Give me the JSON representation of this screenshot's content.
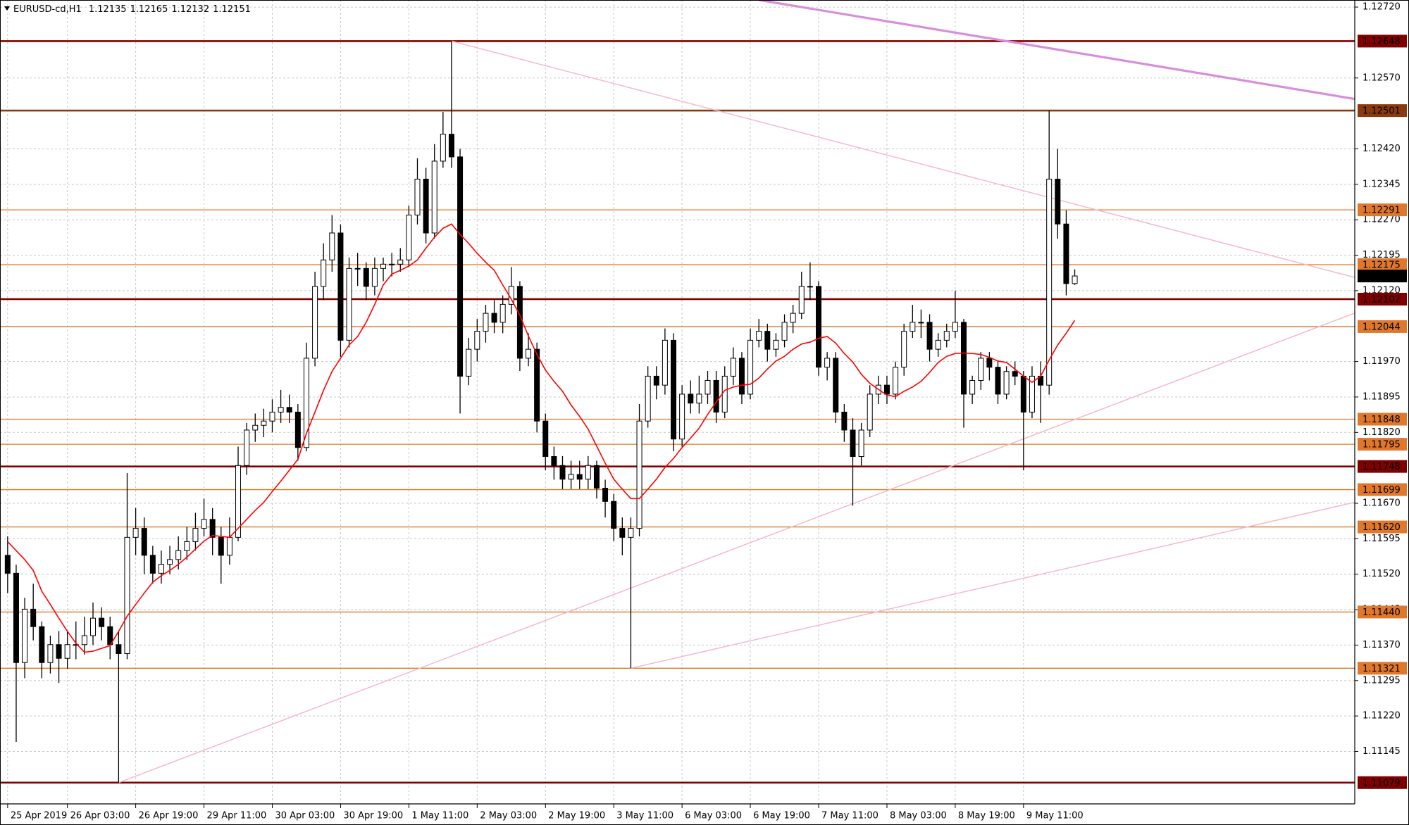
{
  "chart_data": {
    "type": "candlestick",
    "title": "EURUSD-cd,H1",
    "colors": {
      "up": "#ffffff",
      "down": "#000000",
      "outline": "#000000"
    },
    "grid": true,
    "xlim": [
      -0.895,
      157.8
    ],
    "ylim": [
      1.11034,
      1.12735
    ],
    "xticks": [
      {
        "value": 0,
        "label": "25 Apr 2019"
      },
      {
        "value": 7,
        "label": "26 Apr 03:00"
      },
      {
        "value": 15,
        "label": "26 Apr 19:00"
      },
      {
        "value": 23,
        "label": "29 Apr 11:00"
      },
      {
        "value": 31,
        "label": "30 Apr 03:00"
      },
      {
        "value": 39,
        "label": "30 Apr 19:00"
      },
      {
        "value": 47,
        "label": "1 May 11:00"
      },
      {
        "value": 55,
        "label": "2 May 03:00"
      },
      {
        "value": 63,
        "label": "2 May 19:00"
      },
      {
        "value": 71,
        "label": "3 May 11:00"
      },
      {
        "value": 79,
        "label": "6 May 03:00"
      },
      {
        "value": 87,
        "label": "6 May 19:00"
      },
      {
        "value": 95,
        "label": "7 May 11:00"
      },
      {
        "value": 103,
        "label": "8 May 03:00"
      },
      {
        "value": 111,
        "label": "8 May 19:00"
      },
      {
        "value": 119,
        "label": "9 May 11:00"
      }
    ],
    "yticks": [
      {
        "value": 1.1272,
        "label": "1.12720"
      },
      {
        "value": 1.1257,
        "label": "1.12570"
      },
      {
        "value": 1.1242,
        "label": "1.12420"
      },
      1.12345,
      {
        "value": 1.1227,
        "label": "1.12270"
      },
      1.12195,
      {
        "value": 1.1212,
        "label": "1.12120"
      },
      {
        "value": 1.1197,
        "label": "1.11970"
      },
      1.11895,
      {
        "value": 1.1182,
        "label": "1.11820"
      },
      {
        "value": 1.1167,
        "label": "1.11670"
      },
      1.11595,
      {
        "value": 1.1152,
        "label": "1.11520"
      },
      1.11445,
      {
        "value": 1.1137,
        "label": "1.11370"
      },
      1.11295,
      {
        "value": 1.1122,
        "label": "1.11220"
      },
      1.11145
    ],
    "candles": [
      [
        1.1156,
        1.116,
        1.1148,
        1.11522
      ],
      [
        1.11522,
        1.1154,
        1.11165,
        1.11333
      ],
      [
        1.11333,
        1.1147,
        1.113,
        1.11446
      ],
      [
        1.11446,
        1.115,
        1.1138,
        1.11409
      ],
      [
        1.11409,
        1.1142,
        1.113,
        1.11333
      ],
      [
        1.11333,
        1.1139,
        1.1131,
        1.11371
      ],
      [
        1.11371,
        1.114,
        1.1129,
        1.11342
      ],
      [
        1.11342,
        1.114,
        1.1132,
        1.11371
      ],
      [
        1.11371,
        1.1142,
        1.1134,
        1.11371
      ],
      [
        1.11371,
        1.1143,
        1.1135,
        1.1139
      ],
      [
        1.1139,
        1.1146,
        1.1137,
        1.11427
      ],
      [
        1.11427,
        1.1145,
        1.1138,
        1.11409
      ],
      [
        1.11409,
        1.1143,
        1.1134,
        1.11371
      ],
      [
        1.11371,
        1.114,
        1.11079,
        1.11352
      ],
      [
        1.11352,
        1.11734,
        1.1134,
        1.11598
      ],
      [
        1.11598,
        1.1166,
        1.1156,
        1.11617
      ],
      [
        1.11617,
        1.1164,
        1.1152,
        1.1156
      ],
      [
        1.1156,
        1.1158,
        1.115,
        1.11522
      ],
      [
        1.11522,
        1.1157,
        1.115,
        1.11541
      ],
      [
        1.11541,
        1.1158,
        1.1152,
        1.11551
      ],
      [
        1.11551,
        1.116,
        1.1153,
        1.1157
      ],
      [
        1.1157,
        1.1162,
        1.1155,
        1.11589
      ],
      [
        1.11589,
        1.1165,
        1.1157,
        1.11617
      ],
      [
        1.11617,
        1.1168,
        1.116,
        1.11636
      ],
      [
        1.11636,
        1.1166,
        1.1156,
        1.11598
      ],
      [
        1.11598,
        1.1162,
        1.115,
        1.1156
      ],
      [
        1.1156,
        1.1164,
        1.1154,
        1.11598
      ],
      [
        1.11598,
        1.1179,
        1.1159,
        1.1175
      ],
      [
        1.1175,
        1.1184,
        1.1173,
        1.11825
      ],
      [
        1.11825,
        1.1186,
        1.118,
        1.11835
      ],
      [
        1.11835,
        1.1187,
        1.1181,
        1.11844
      ],
      [
        1.11844,
        1.1189,
        1.1182,
        1.11863
      ],
      [
        1.11863,
        1.1191,
        1.1184,
        1.11873
      ],
      [
        1.11873,
        1.119,
        1.1184,
        1.11863
      ],
      [
        1.11863,
        1.1188,
        1.1176,
        1.11788
      ],
      [
        1.11788,
        1.1201,
        1.1178,
        1.11977
      ],
      [
        1.11977,
        1.1216,
        1.1196,
        1.12129
      ],
      [
        1.12129,
        1.1222,
        1.121,
        1.12185
      ],
      [
        1.12185,
        1.1228,
        1.1216,
        1.12242
      ],
      [
        1.12242,
        1.1226,
        1.1198,
        1.12015
      ],
      [
        1.12015,
        1.1219,
        1.12,
        1.12167
      ],
      [
        1.12167,
        1.122,
        1.1213,
        1.12167
      ],
      [
        1.12167,
        1.1218,
        1.121,
        1.12129
      ],
      [
        1.12129,
        1.1219,
        1.1211,
        1.12167
      ],
      [
        1.12167,
        1.1219,
        1.1214,
        1.12176
      ],
      [
        1.12176,
        1.122,
        1.1215,
        1.12176
      ],
      [
        1.12176,
        1.1221,
        1.1216,
        1.12185
      ],
      [
        1.12185,
        1.123,
        1.1217,
        1.1228
      ],
      [
        1.1228,
        1.124,
        1.1226,
        1.12356
      ],
      [
        1.12356,
        1.1238,
        1.1222,
        1.12242
      ],
      [
        1.12242,
        1.1243,
        1.1223,
        1.12394
      ],
      [
        1.12394,
        1.12498,
        1.1238,
        1.12451
      ],
      [
        1.12451,
        1.12648,
        1.1238,
        1.12403
      ],
      [
        1.12403,
        1.1242,
        1.1186,
        1.11939
      ],
      [
        1.11939,
        1.1202,
        1.1192,
        1.11996
      ],
      [
        1.11996,
        1.1206,
        1.1197,
        1.12034
      ],
      [
        1.12034,
        1.1209,
        1.1201,
        1.12072
      ],
      [
        1.12072,
        1.121,
        1.1203,
        1.12053
      ],
      [
        1.12053,
        1.1211,
        1.1203,
        1.12091
      ],
      [
        1.12091,
        1.1217,
        1.1207,
        1.12129
      ],
      [
        1.12129,
        1.1214,
        1.1195,
        1.11977
      ],
      [
        1.11977,
        1.1203,
        1.1196,
        1.11996
      ],
      [
        1.11996,
        1.1201,
        1.1182,
        1.11844
      ],
      [
        1.11844,
        1.1186,
        1.1174,
        1.11769
      ],
      [
        1.11769,
        1.1179,
        1.1172,
        1.1175
      ],
      [
        1.1175,
        1.1177,
        1.117,
        1.11721
      ],
      [
        1.11721,
        1.1176,
        1.117,
        1.11731
      ],
      [
        1.11731,
        1.1176,
        1.117,
        1.11721
      ],
      [
        1.11721,
        1.1177,
        1.117,
        1.1175
      ],
      [
        1.1175,
        1.1176,
        1.1168,
        1.11702
      ],
      [
        1.11702,
        1.1172,
        1.1164,
        1.11674
      ],
      [
        1.11674,
        1.1169,
        1.1159,
        1.11617
      ],
      [
        1.11617,
        1.1164,
        1.1156,
        1.11598
      ],
      [
        1.11598,
        1.1164,
        1.11321,
        1.11617
      ],
      [
        1.11617,
        1.1188,
        1.116,
        1.11844
      ],
      [
        1.11844,
        1.1196,
        1.1183,
        1.11939
      ],
      [
        1.11939,
        1.1196,
        1.1189,
        1.1192
      ],
      [
        1.1192,
        1.1204,
        1.119,
        1.12015
      ],
      [
        1.12015,
        1.1203,
        1.1178,
        1.11806
      ],
      [
        1.11806,
        1.1192,
        1.1179,
        1.11901
      ],
      [
        1.11901,
        1.1193,
        1.1186,
        1.11882
      ],
      [
        1.11882,
        1.1194,
        1.1186,
        1.11901
      ],
      [
        1.11901,
        1.1195,
        1.1188,
        1.1193
      ],
      [
        1.1193,
        1.1195,
        1.1184,
        1.11863
      ],
      [
        1.11863,
        1.1196,
        1.1185,
        1.11939
      ],
      [
        1.11939,
        1.12,
        1.1192,
        1.11977
      ],
      [
        1.11977,
        1.1199,
        1.1188,
        1.11901
      ],
      [
        1.11901,
        1.1204,
        1.1189,
        1.12015
      ],
      [
        1.12015,
        1.1206,
        1.12,
        1.12034
      ],
      [
        1.12034,
        1.1205,
        1.1197,
        1.11996
      ],
      [
        1.11996,
        1.1203,
        1.1198,
        1.12015
      ],
      [
        1.12015,
        1.1207,
        1.12,
        1.12053
      ],
      [
        1.12053,
        1.1209,
        1.1203,
        1.12072
      ],
      [
        1.12072,
        1.1216,
        1.1206,
        1.12129
      ],
      [
        1.12129,
        1.1218,
        1.121,
        1.12129
      ],
      [
        1.12129,
        1.1214,
        1.1194,
        1.11958
      ],
      [
        1.11958,
        1.1199,
        1.1193,
        1.11977
      ],
      [
        1.11977,
        1.1199,
        1.1184,
        1.11863
      ],
      [
        1.11863,
        1.1188,
        1.118,
        1.11825
      ],
      [
        1.11825,
        1.1185,
        1.11665,
        1.11769
      ],
      [
        1.11769,
        1.1184,
        1.1175,
        1.11825
      ],
      [
        1.11825,
        1.1192,
        1.1181,
        1.11901
      ],
      [
        1.11901,
        1.1194,
        1.1188,
        1.1192
      ],
      [
        1.1192,
        1.1194,
        1.1188,
        1.11901
      ],
      [
        1.11901,
        1.1197,
        1.1189,
        1.11958
      ],
      [
        1.11958,
        1.1205,
        1.1194,
        1.12034
      ],
      [
        1.12034,
        1.1209,
        1.1202,
        1.12053
      ],
      [
        1.12053,
        1.1208,
        1.1202,
        1.12053
      ],
      [
        1.12053,
        1.1207,
        1.1197,
        1.11996
      ],
      [
        1.11996,
        1.1203,
        1.1198,
        1.12015
      ],
      [
        1.12015,
        1.1205,
        1.12,
        1.12034
      ],
      [
        1.12034,
        1.1212,
        1.1202,
        1.12053
      ],
      [
        1.12053,
        1.1206,
        1.1183,
        1.11901
      ],
      [
        1.11901,
        1.1194,
        1.1188,
        1.1193
      ],
      [
        1.1193,
        1.1199,
        1.1191,
        1.11977
      ],
      [
        1.11977,
        1.1199,
        1.1193,
        1.11958
      ],
      [
        1.11958,
        1.1197,
        1.1188,
        1.11901
      ],
      [
        1.11901,
        1.1196,
        1.1189,
        1.11949
      ],
      [
        1.11949,
        1.1197,
        1.1192,
        1.11939
      ],
      [
        1.11939,
        1.1195,
        1.1174,
        1.11863
      ],
      [
        1.11863,
        1.1196,
        1.1185,
        1.11939
      ],
      [
        1.11939,
        1.1197,
        1.1184,
        1.1192
      ],
      [
        1.1192,
        1.12501,
        1.119,
        1.12356
      ],
      [
        1.12356,
        1.1242,
        1.1223,
        1.12261
      ],
      [
        1.12261,
        1.1229,
        1.1211,
        1.12135
      ],
      [
        1.12135,
        1.12165,
        1.12132,
        1.12151
      ]
    ],
    "moving_average": {
      "color": "#ff0000",
      "values": [
        1.11589,
        1.1157,
        1.11551,
        1.11528,
        1.11484,
        1.11456,
        1.11427,
        1.11399,
        1.11374,
        1.11355,
        1.11357,
        1.11363,
        1.11369,
        1.11399,
        1.11431,
        1.11456,
        1.1148,
        1.11503,
        1.11517,
        1.11528,
        1.11541,
        1.11556,
        1.11573,
        1.1159,
        1.11602,
        1.116,
        1.11598,
        1.11617,
        1.11636,
        1.11655,
        1.11672,
        1.11695,
        1.11717,
        1.1174,
        1.11763,
        1.11818,
        1.11863,
        1.11909,
        1.11949,
        1.11977,
        1.12005,
        1.12023,
        1.12053,
        1.12091,
        1.12132,
        1.12155,
        1.12163,
        1.12172,
        1.12185,
        1.1221,
        1.12233,
        1.12252,
        1.12261,
        1.12239,
        1.1222,
        1.12199,
        1.1218,
        1.12163,
        1.12132,
        1.12102,
        1.12068,
        1.12024,
        1.11985,
        1.11952,
        1.11928,
        1.11907,
        1.11878,
        1.11854,
        1.11827,
        1.11791,
        1.11755,
        1.11721,
        1.117,
        1.1168,
        1.1168,
        1.117,
        1.11721,
        1.11746,
        1.11765,
        1.11788,
        1.11808,
        1.11829,
        1.11858,
        1.11884,
        1.11909,
        1.11916,
        1.1192,
        1.11922,
        1.11935,
        1.11954,
        1.11971,
        1.11981,
        1.11996,
        1.12007,
        1.12011,
        1.12019,
        1.12023,
        1.12009,
        1.11987,
        1.11969,
        1.11943,
        1.11924,
        1.11911,
        1.11899,
        1.11896,
        1.11907,
        1.11916,
        1.11928,
        1.11947,
        1.11968,
        1.11981,
        1.11987,
        1.11988,
        1.11987,
        1.11985,
        1.11979,
        1.11971,
        1.11968,
        1.11954,
        1.11939,
        1.11926,
        1.11939,
        1.11973,
        1.12005,
        1.1203,
        1.12057
      ]
    },
    "levels": [
      {
        "value": 1.12648,
        "color": "#800000",
        "width": 2.6
      },
      {
        "value": 1.12501,
        "color": "#8b3a0f",
        "width": 2.6
      },
      {
        "value": 1.12291,
        "color": "#e0782c",
        "width": 1.3
      },
      {
        "value": 1.12175,
        "color": "#e0782c",
        "width": 1.3
      },
      {
        "value": 1.12102,
        "color": "#800000",
        "width": 2.6
      },
      {
        "value": 1.12044,
        "color": "#e0782c",
        "width": 1.3
      },
      {
        "value": 1.11848,
        "color": "#e0782c",
        "width": 1.3
      },
      {
        "value": 1.11795,
        "color": "#e0782c",
        "width": 1.3
      },
      {
        "value": 1.11748,
        "color": "#800000",
        "width": 2.6
      },
      {
        "value": 1.11699,
        "color": "#e0782c",
        "width": 1.3
      },
      {
        "value": {
          "value": 1.1162,
          "label": "1.11620"
        },
        "color": "#e0782c",
        "width": 1.3
      },
      {
        "value": {
          "value": 1.1144,
          "label": "1.11440"
        },
        "color": "#e0782c",
        "width": 1.3
      },
      {
        "value": 1.11321,
        "color": "#e0782c",
        "width": 1.3
      },
      {
        "value": 1.11079,
        "color": "#800000",
        "width": 2.6
      }
    ],
    "trendlines": [
      {
        "points": [
          [
            52,
            1.12648
          ],
          [
            158,
            1.12147
          ]
        ],
        "color": "#f6b8c8",
        "width": 1.5
      },
      {
        "points": [
          [
            88,
            1.12735
          ],
          [
            158,
            1.12525
          ]
        ],
        "color": "#d68fd8",
        "width": 3.2
      },
      {
        "points": [
          [
            13,
            1.11079
          ],
          [
            158,
            1.12074
          ]
        ],
        "color": "#f6b8c8",
        "width": 1.5
      },
      {
        "points": [
          [
            73,
            1.11321
          ],
          [
            158,
            1.11673
          ]
        ],
        "color": "#f6b8c8",
        "width": 1.5
      }
    ],
    "price_label_color": "#000000"
  }
}
